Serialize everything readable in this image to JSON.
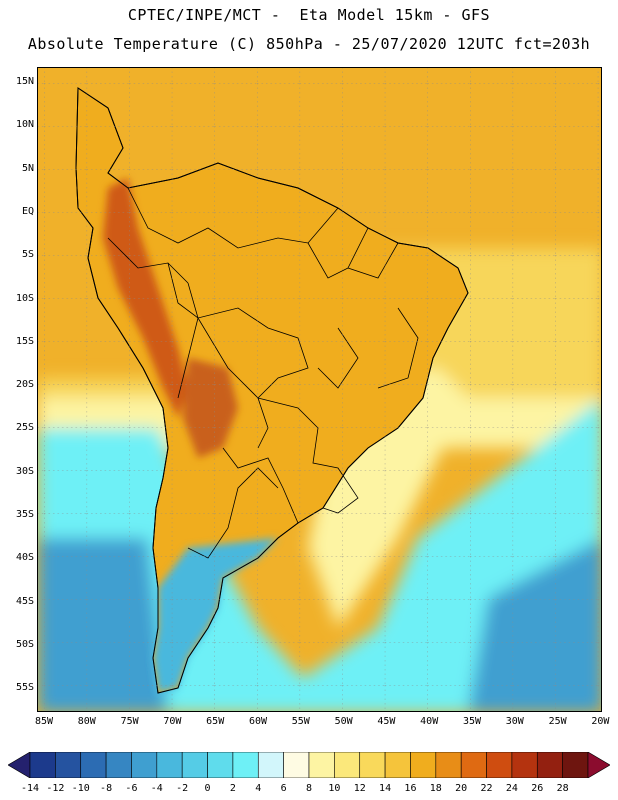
{
  "title_line1": "CPTEC/INPE/MCT -  Eta Model 15km - GFS",
  "title_line2": "Absolute Temperature (C) 850hPa - 25/07/2020 12UTC fct=203h",
  "lat_labels": [
    "15N",
    "10N",
    "5N",
    "EQ",
    "5S",
    "10S",
    "15S",
    "20S",
    "25S",
    "30S",
    "35S",
    "40S",
    "45S",
    "50S",
    "55S"
  ],
  "lon_labels": [
    "85W",
    "80W",
    "75W",
    "70W",
    "65W",
    "60W",
    "55W",
    "50W",
    "45W",
    "40W",
    "35W",
    "30W",
    "25W",
    "20W"
  ],
  "colorbar": {
    "labels": [
      "-14",
      "-12",
      "-10",
      "-8",
      "-6",
      "-4",
      "-2",
      "0",
      "2",
      "4",
      "6",
      "8",
      "10",
      "12",
      "14",
      "16",
      "18",
      "20",
      "22",
      "24",
      "26",
      "28"
    ],
    "colors": [
      "#1c3a8c",
      "#2553a0",
      "#2c6cb3",
      "#3686c2",
      "#3f9fd0",
      "#49b8dd",
      "#55cce6",
      "#5fdcec",
      "#6ef0f6",
      "#d2f6fb",
      "#fefbe3",
      "#fdf4a3",
      "#fbe87b",
      "#f9d95b",
      "#f5c43b",
      "#f0ad1e",
      "#e88d17",
      "#df6a12",
      "#cf4d10",
      "#b4330f",
      "#932010",
      "#6e150f"
    ],
    "under_color": "#24216e",
    "over_color": "#8b0c2e"
  },
  "colors": {
    "ocean_north": "#f0b12a",
    "ocean_central": "#f7d65a",
    "ocean_south_warm": "#fdf4a3",
    "ocean_cold": "#6ef0f6",
    "ocean_deep_cold": "#3f9fd0",
    "continent_warm": "#f0ad1e",
    "andes_hot": "#cf5a14",
    "chaco_hot": "#c9601a",
    "patagonia_cold": "#49b8dd"
  }
}
